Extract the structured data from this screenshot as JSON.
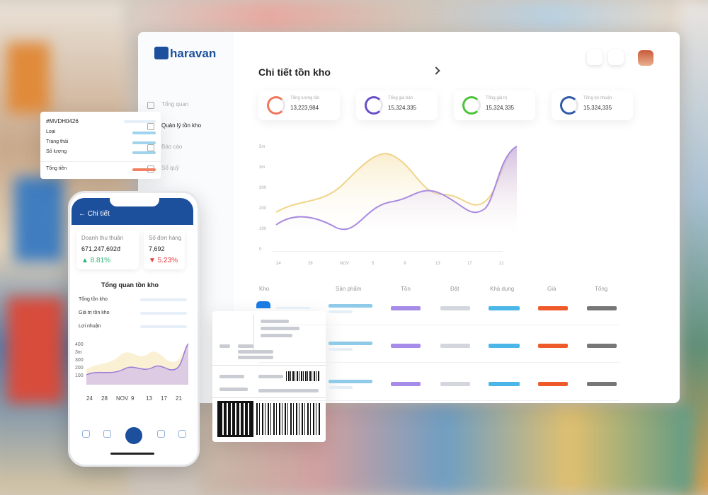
{
  "logo": "haravan",
  "sidebar": [
    "Tổng quan",
    "Quản lý tồn kho",
    "Báo cáo",
    "Sổ quỹ"
  ],
  "dashboard": {
    "title": "Chi tiết tồn kho",
    "stats": [
      {
        "label": "Tổng lượng tồn",
        "value": "13,223,984"
      },
      {
        "label": "Tổng giá bán",
        "value": "15,324,335"
      },
      {
        "label": "Tổng giá trị",
        "value": "15,324,335"
      },
      {
        "label": "Tổng lợi nhuận",
        "value": "15,324,335"
      }
    ],
    "chart": {
      "yticks": [
        "5m",
        "3m",
        "300",
        "200",
        "100",
        "0"
      ],
      "xticks": [
        "24",
        "28",
        "NOV",
        "5",
        "9",
        "13",
        "17",
        "21"
      ]
    },
    "table_headers": [
      "Kho",
      "Sản phẩm",
      "Tồn",
      "Đặt",
      "Khả dụng",
      "Giá",
      "Tổng"
    ]
  },
  "order_card": {
    "id": "#MVDH0426",
    "fields": [
      "Loại",
      "Trạng thái",
      "Số lượng",
      "Tổng tiền"
    ]
  },
  "phone": {
    "header": "← Chi tiết",
    "kpis": [
      {
        "label": "Doanh thu thuần",
        "value": "671,247,692đ",
        "change": "▲ 8.81%"
      },
      {
        "label": "Số đơn hàng",
        "value": "7,692",
        "change": "▼ 5.23%"
      }
    ],
    "section_title": "Tổng quan tồn kho",
    "rows": [
      "Tổng tồn kho",
      "Giá trị tồn kho",
      "Lợi nhuận"
    ],
    "chart": {
      "yticks": [
        "400",
        "3m",
        "300",
        "200",
        "100"
      ],
      "xticks": [
        "24",
        "28",
        "NOV",
        "9",
        "13",
        "17",
        "21"
      ]
    }
  }
}
